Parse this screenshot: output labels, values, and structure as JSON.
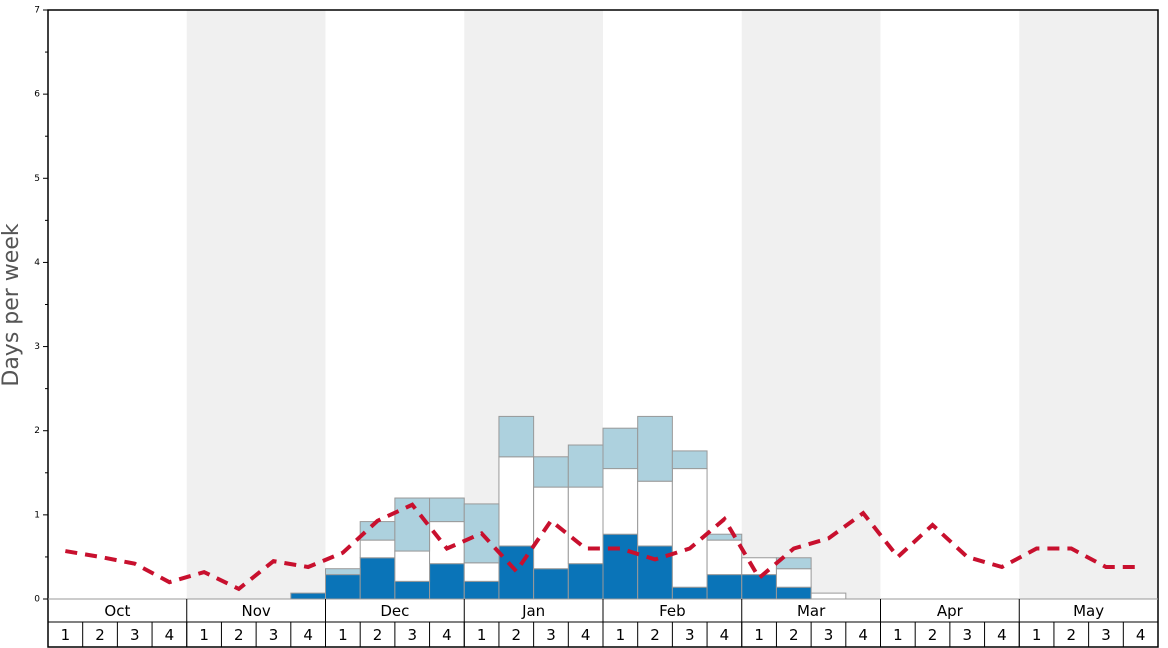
{
  "chart_data": {
    "type": "bar",
    "stacked": true,
    "ylabel": "Days per week",
    "months": [
      "Oct",
      "Nov",
      "Dec",
      "Jan",
      "Feb",
      "Mar",
      "Apr",
      "May"
    ],
    "categories": [
      "1",
      "2",
      "3",
      "4",
      "1",
      "2",
      "3",
      "4",
      "1",
      "2",
      "3",
      "4",
      "1",
      "2",
      "3",
      "4",
      "1",
      "2",
      "3",
      "4",
      "1",
      "2",
      "3",
      "4",
      "1",
      "2",
      "3",
      "4",
      "1",
      "2",
      "3",
      "4"
    ],
    "ylim": [
      0,
      7
    ],
    "yticks": [
      0,
      1,
      2,
      3,
      4,
      5,
      6,
      7
    ],
    "yminorticks": [
      0.5,
      1.5,
      2.5,
      3.5,
      4.5,
      5.5,
      6.5
    ],
    "shaded_months_color": "#f0f0f0",
    "series": [
      {
        "color": "#0a74b8",
        "values": [
          0,
          0,
          0,
          0,
          0,
          0,
          0,
          0.07,
          0.29,
          0.49,
          0.21,
          0.42,
          0.21,
          0.63,
          0.36,
          0.42,
          0.77,
          0.63,
          0.14,
          0.29,
          0.29,
          0.14,
          0,
          0,
          0,
          0,
          0,
          0,
          0,
          0,
          0,
          0
        ]
      },
      {
        "color": "#ffffff",
        "values": [
          0,
          0,
          0,
          0,
          0,
          0,
          0,
          0,
          0,
          0.21,
          0.36,
          0.5,
          0.22,
          1.06,
          0.97,
          0.91,
          0.78,
          0.77,
          1.41,
          0.41,
          0.2,
          0.22,
          0.07,
          0,
          0,
          0,
          0,
          0,
          0,
          0,
          0,
          0
        ]
      },
      {
        "color": "#add1de",
        "values": [
          0,
          0,
          0,
          0,
          0,
          0,
          0,
          0,
          0.07,
          0.22,
          0.63,
          0.28,
          0.7,
          0.48,
          0.36,
          0.5,
          0.48,
          0.77,
          0.21,
          0.07,
          0,
          0.13,
          0,
          0,
          0,
          0,
          0,
          0,
          0,
          0,
          0,
          0
        ]
      },
      {
        "type": "line",
        "color": "#c8102e",
        "dashed": true,
        "values": [
          0.57,
          0.5,
          0.42,
          0.2,
          0.32,
          0.12,
          0.45,
          0.38,
          0.55,
          0.93,
          1.12,
          0.6,
          0.78,
          0.33,
          0.93,
          0.6,
          0.6,
          0.47,
          0.6,
          0.95,
          0.25,
          0.6,
          0.72,
          1.02,
          0.5,
          0.88,
          0.5,
          0.38,
          0.6,
          0.6,
          0.38,
          0.38
        ]
      }
    ]
  }
}
